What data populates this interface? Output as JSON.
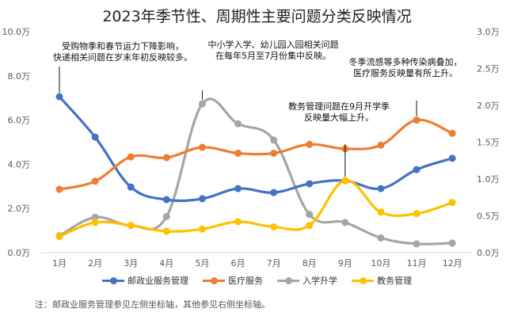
{
  "chart_data": {
    "type": "line",
    "title": "2023年季节性、周期性主要问题分类反映情况",
    "categories": [
      "1月",
      "2月",
      "3月",
      "4月",
      "5月",
      "6月",
      "7月",
      "8月",
      "9月",
      "10月",
      "11月",
      "12月"
    ],
    "y_left": {
      "ticks": [
        "0.0万",
        "2.0万",
        "4.0万",
        "6.0万",
        "8.0万",
        "10.0万"
      ],
      "ylim": [
        0,
        10
      ],
      "unit": "万"
    },
    "y_right": {
      "ticks": [
        "0.0万",
        "0.5万",
        "1.0万",
        "1.5万",
        "2.0万",
        "2.5万",
        "3.0万"
      ],
      "ylim": [
        0,
        3
      ],
      "unit": "万"
    },
    "series": [
      {
        "name": "邮政业服务管理",
        "axis": "left",
        "color": "#4472C4",
        "values": [
          7.06,
          5.23,
          2.97,
          2.4,
          2.44,
          2.9,
          2.72,
          3.12,
          3.26,
          2.9,
          3.76,
          4.27
        ]
      },
      {
        "name": "医疗服务",
        "axis": "right",
        "color": "#ED7D31",
        "values": [
          0.86,
          0.97,
          1.3,
          1.29,
          1.43,
          1.35,
          1.35,
          1.47,
          1.41,
          1.46,
          1.8,
          1.62
        ]
      },
      {
        "name": "入学升学",
        "axis": "right",
        "color": "#A5A5A5",
        "values": [
          0.23,
          0.48,
          0.37,
          0.49,
          2.02,
          1.75,
          1.53,
          0.52,
          0.41,
          0.2,
          0.12,
          0.13
        ]
      },
      {
        "name": "教务管理",
        "axis": "right",
        "color": "#FFC000",
        "values": [
          0.22,
          0.41,
          0.37,
          0.29,
          0.32,
          0.42,
          0.35,
          0.37,
          0.98,
          0.55,
          0.53,
          0.68
        ]
      }
    ],
    "annotations": [
      {
        "lines": [
          "受购物季和春节运力下降影响，",
          "快递相关问题在岁末年初反映较多。"
        ],
        "series": 0,
        "month": 0
      },
      {
        "lines": [
          "中小学入学、幼儿园入园相关问题",
          "在每年5月至7月份集中反映。"
        ],
        "series": 2,
        "month": 4
      },
      {
        "lines": [
          "教务管理问题在9月开学季",
          "反映量大幅上升。"
        ],
        "series": 3,
        "month": 8
      },
      {
        "lines": [
          "冬季流感等多种传染病叠加，",
          "医疗服务反映量有所上升。"
        ],
        "series": 1,
        "month": 10
      }
    ],
    "grid": false,
    "legend": "bottom",
    "note": "注：邮政业服务管理参见左侧坐标轴，其他参见右侧坐标轴。"
  }
}
